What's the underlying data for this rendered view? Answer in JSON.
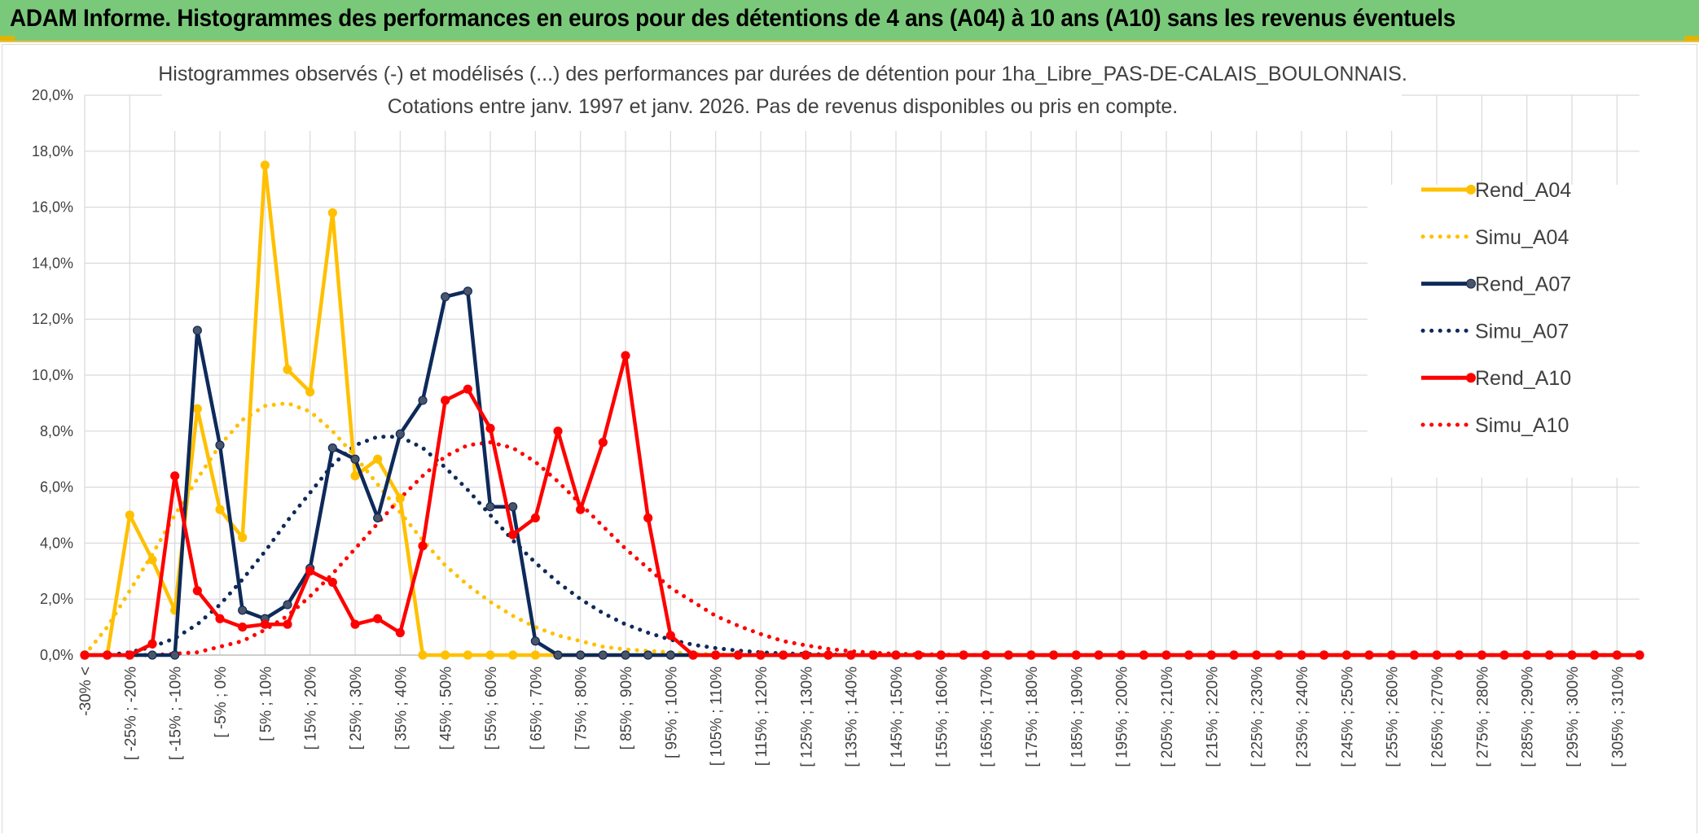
{
  "header": {
    "title": "ADAM Informe. Histogrammes des performances en euros pour des détentions de 4 ans (A04) à 10 ans (A10) sans les revenus éventuels",
    "background": "#7ac97a"
  },
  "chart_data": {
    "type": "line",
    "title_line1": "Histogrammes observés (-) et modélisés (...) des performances par durées de détention pour 1ha_Libre_PAS-DE-CALAIS_BOULONNAIS.",
    "title_line2": "Cotations entre janv. 1997 et janv. 2026. Pas de revenus disponibles ou pris en compte.",
    "xlabel": "",
    "ylabel": "",
    "ylim": [
      0,
      20
    ],
    "yticks": [
      "0,0%",
      "2,0%",
      "4,0%",
      "6,0%",
      "8,0%",
      "10,0%",
      "12,0%",
      "14,0%",
      "16,0%",
      "18,0%",
      "20,0%"
    ],
    "grid": true,
    "legend_position": "right",
    "category_labels": [
      "-30% <",
      "[ -25% ; -20%",
      "[ -15% ; -10%",
      "[ -5% ; 0%",
      "[ 5% ; 10%",
      "[ 15% ; 20%",
      "[ 25% ; 30%",
      "[ 35% ; 40%",
      "[ 45% ; 50%",
      "[ 55% ; 60%",
      "[ 65% ; 70%",
      "[ 75% ; 80%",
      "[ 85% ; 90%",
      "[ 95% ; 100%",
      "[ 105% ; 110%",
      "[ 115% ; 120%",
      "[ 125% ; 130%",
      "[ 135% ; 140%",
      "[ 145% ; 150%",
      "[ 155% ; 160%",
      "[ 165% ; 170%",
      "[ 175% ; 180%",
      "[ 185% ; 190%",
      "[ 195% ; 200%",
      "[ 205% ; 210%",
      "[ 215% ; 220%",
      "[ 225% ; 230%",
      "[ 235% ; 240%",
      "[ 245% ; 250%",
      "[ 255% ; 260%",
      "[ 265% ; 270%",
      "[ 275% ; 280%",
      "[ 285% ; 290%",
      "[ 295% ; 300%",
      "[ 305% ; 310%"
    ],
    "n_points": 70,
    "series": [
      {
        "name": "Rend_A04",
        "style": "solid",
        "color": "#ffc000",
        "values": [
          0,
          0,
          5.0,
          3.4,
          1.6,
          8.8,
          5.2,
          4.2,
          17.5,
          10.2,
          9.4,
          15.8,
          6.4,
          7.0,
          5.6,
          0,
          0,
          0,
          0,
          0,
          0,
          0,
          0,
          0,
          0,
          0,
          0,
          0,
          0,
          0,
          0,
          0,
          0,
          0,
          0,
          0,
          0,
          0,
          0,
          0,
          0,
          0,
          0,
          0,
          0,
          0,
          0,
          0,
          0,
          0,
          0,
          0,
          0,
          0,
          0,
          0,
          0,
          0,
          0,
          0,
          0,
          0,
          0,
          0,
          0,
          0,
          0,
          0,
          0,
          0
        ]
      },
      {
        "name": "Simu_A04",
        "style": "dotted",
        "color": "#ffc000",
        "values": [
          0,
          1.0,
          2.3,
          3.6,
          5.0,
          6.3,
          7.5,
          8.4,
          8.9,
          9.0,
          8.7,
          8.0,
          7.1,
          6.1,
          5.1,
          4.1,
          3.2,
          2.5,
          1.9,
          1.4,
          1.0,
          0.7,
          0.5,
          0.3,
          0.2,
          0.15,
          0.1,
          0.05,
          0.03,
          0.02,
          0,
          0,
          0,
          0,
          0,
          0,
          0,
          0,
          0,
          0,
          0,
          0,
          0,
          0,
          0,
          0,
          0,
          0,
          0,
          0,
          0,
          0,
          0,
          0,
          0,
          0,
          0,
          0,
          0,
          0,
          0,
          0,
          0,
          0,
          0,
          0,
          0,
          0,
          0,
          0
        ]
      },
      {
        "name": "Rend_A07",
        "style": "solid",
        "color": "#0e2a5a",
        "values": [
          0,
          0,
          0,
          0,
          0,
          11.6,
          7.5,
          1.6,
          1.3,
          1.8,
          3.1,
          7.4,
          7.0,
          4.9,
          7.9,
          9.1,
          12.8,
          13.0,
          5.3,
          5.3,
          0.5,
          0,
          0,
          0,
          0,
          0,
          0,
          0,
          0,
          0,
          0,
          0,
          0,
          0,
          0,
          0,
          0,
          0,
          0,
          0,
          0,
          0,
          0,
          0,
          0,
          0,
          0,
          0,
          0,
          0,
          0,
          0,
          0,
          0,
          0,
          0,
          0,
          0,
          0,
          0,
          0,
          0,
          0,
          0,
          0,
          0,
          0,
          0,
          0,
          0
        ]
      },
      {
        "name": "Simu_A07",
        "style": "dotted",
        "color": "#0e2a5a",
        "values": [
          0,
          0,
          0.1,
          0.3,
          0.6,
          1.1,
          1.8,
          2.7,
          3.7,
          4.8,
          5.8,
          6.8,
          7.5,
          7.8,
          7.8,
          7.4,
          6.7,
          5.9,
          5.0,
          4.1,
          3.3,
          2.6,
          2.0,
          1.5,
          1.1,
          0.8,
          0.55,
          0.37,
          0.25,
          0.16,
          0.1,
          0.06,
          0.04,
          0.02,
          0.01,
          0,
          0,
          0,
          0,
          0,
          0,
          0,
          0,
          0,
          0,
          0,
          0,
          0,
          0,
          0,
          0,
          0,
          0,
          0,
          0,
          0,
          0,
          0,
          0,
          0,
          0,
          0,
          0,
          0,
          0,
          0,
          0,
          0,
          0,
          0
        ]
      },
      {
        "name": "Rend_A10",
        "style": "solid",
        "color": "#ff0000",
        "values": [
          0,
          0,
          0,
          0.4,
          6.4,
          2.3,
          1.3,
          1.0,
          1.1,
          1.1,
          3.0,
          2.6,
          1.1,
          1.3,
          0.8,
          3.9,
          9.1,
          9.5,
          8.1,
          4.3,
          4.9,
          8.0,
          5.2,
          7.6,
          10.7,
          4.9,
          0.7,
          0,
          0,
          0,
          0,
          0,
          0,
          0,
          0,
          0,
          0,
          0,
          0,
          0,
          0,
          0,
          0,
          0,
          0,
          0,
          0,
          0,
          0,
          0,
          0,
          0,
          0,
          0,
          0,
          0,
          0,
          0,
          0,
          0,
          0,
          0,
          0,
          0,
          0,
          0,
          0,
          0,
          0,
          0
        ]
      },
      {
        "name": "Simu_A10",
        "style": "dotted",
        "color": "#ff0000",
        "values": [
          0,
          0,
          0,
          0,
          0.05,
          0.1,
          0.3,
          0.5,
          0.9,
          1.4,
          2.1,
          2.9,
          3.8,
          4.7,
          5.6,
          6.4,
          7.1,
          7.5,
          7.6,
          7.4,
          6.9,
          6.2,
          5.4,
          4.6,
          3.8,
          3.1,
          2.4,
          1.9,
          1.4,
          1.05,
          0.75,
          0.5,
          0.35,
          0.22,
          0.14,
          0.08,
          0.05,
          0.03,
          0.02,
          0.01,
          0,
          0,
          0,
          0,
          0,
          0,
          0,
          0,
          0,
          0,
          0,
          0,
          0,
          0,
          0,
          0,
          0,
          0,
          0,
          0,
          0,
          0,
          0,
          0,
          0,
          0,
          0,
          0,
          0,
          0
        ]
      }
    ]
  }
}
